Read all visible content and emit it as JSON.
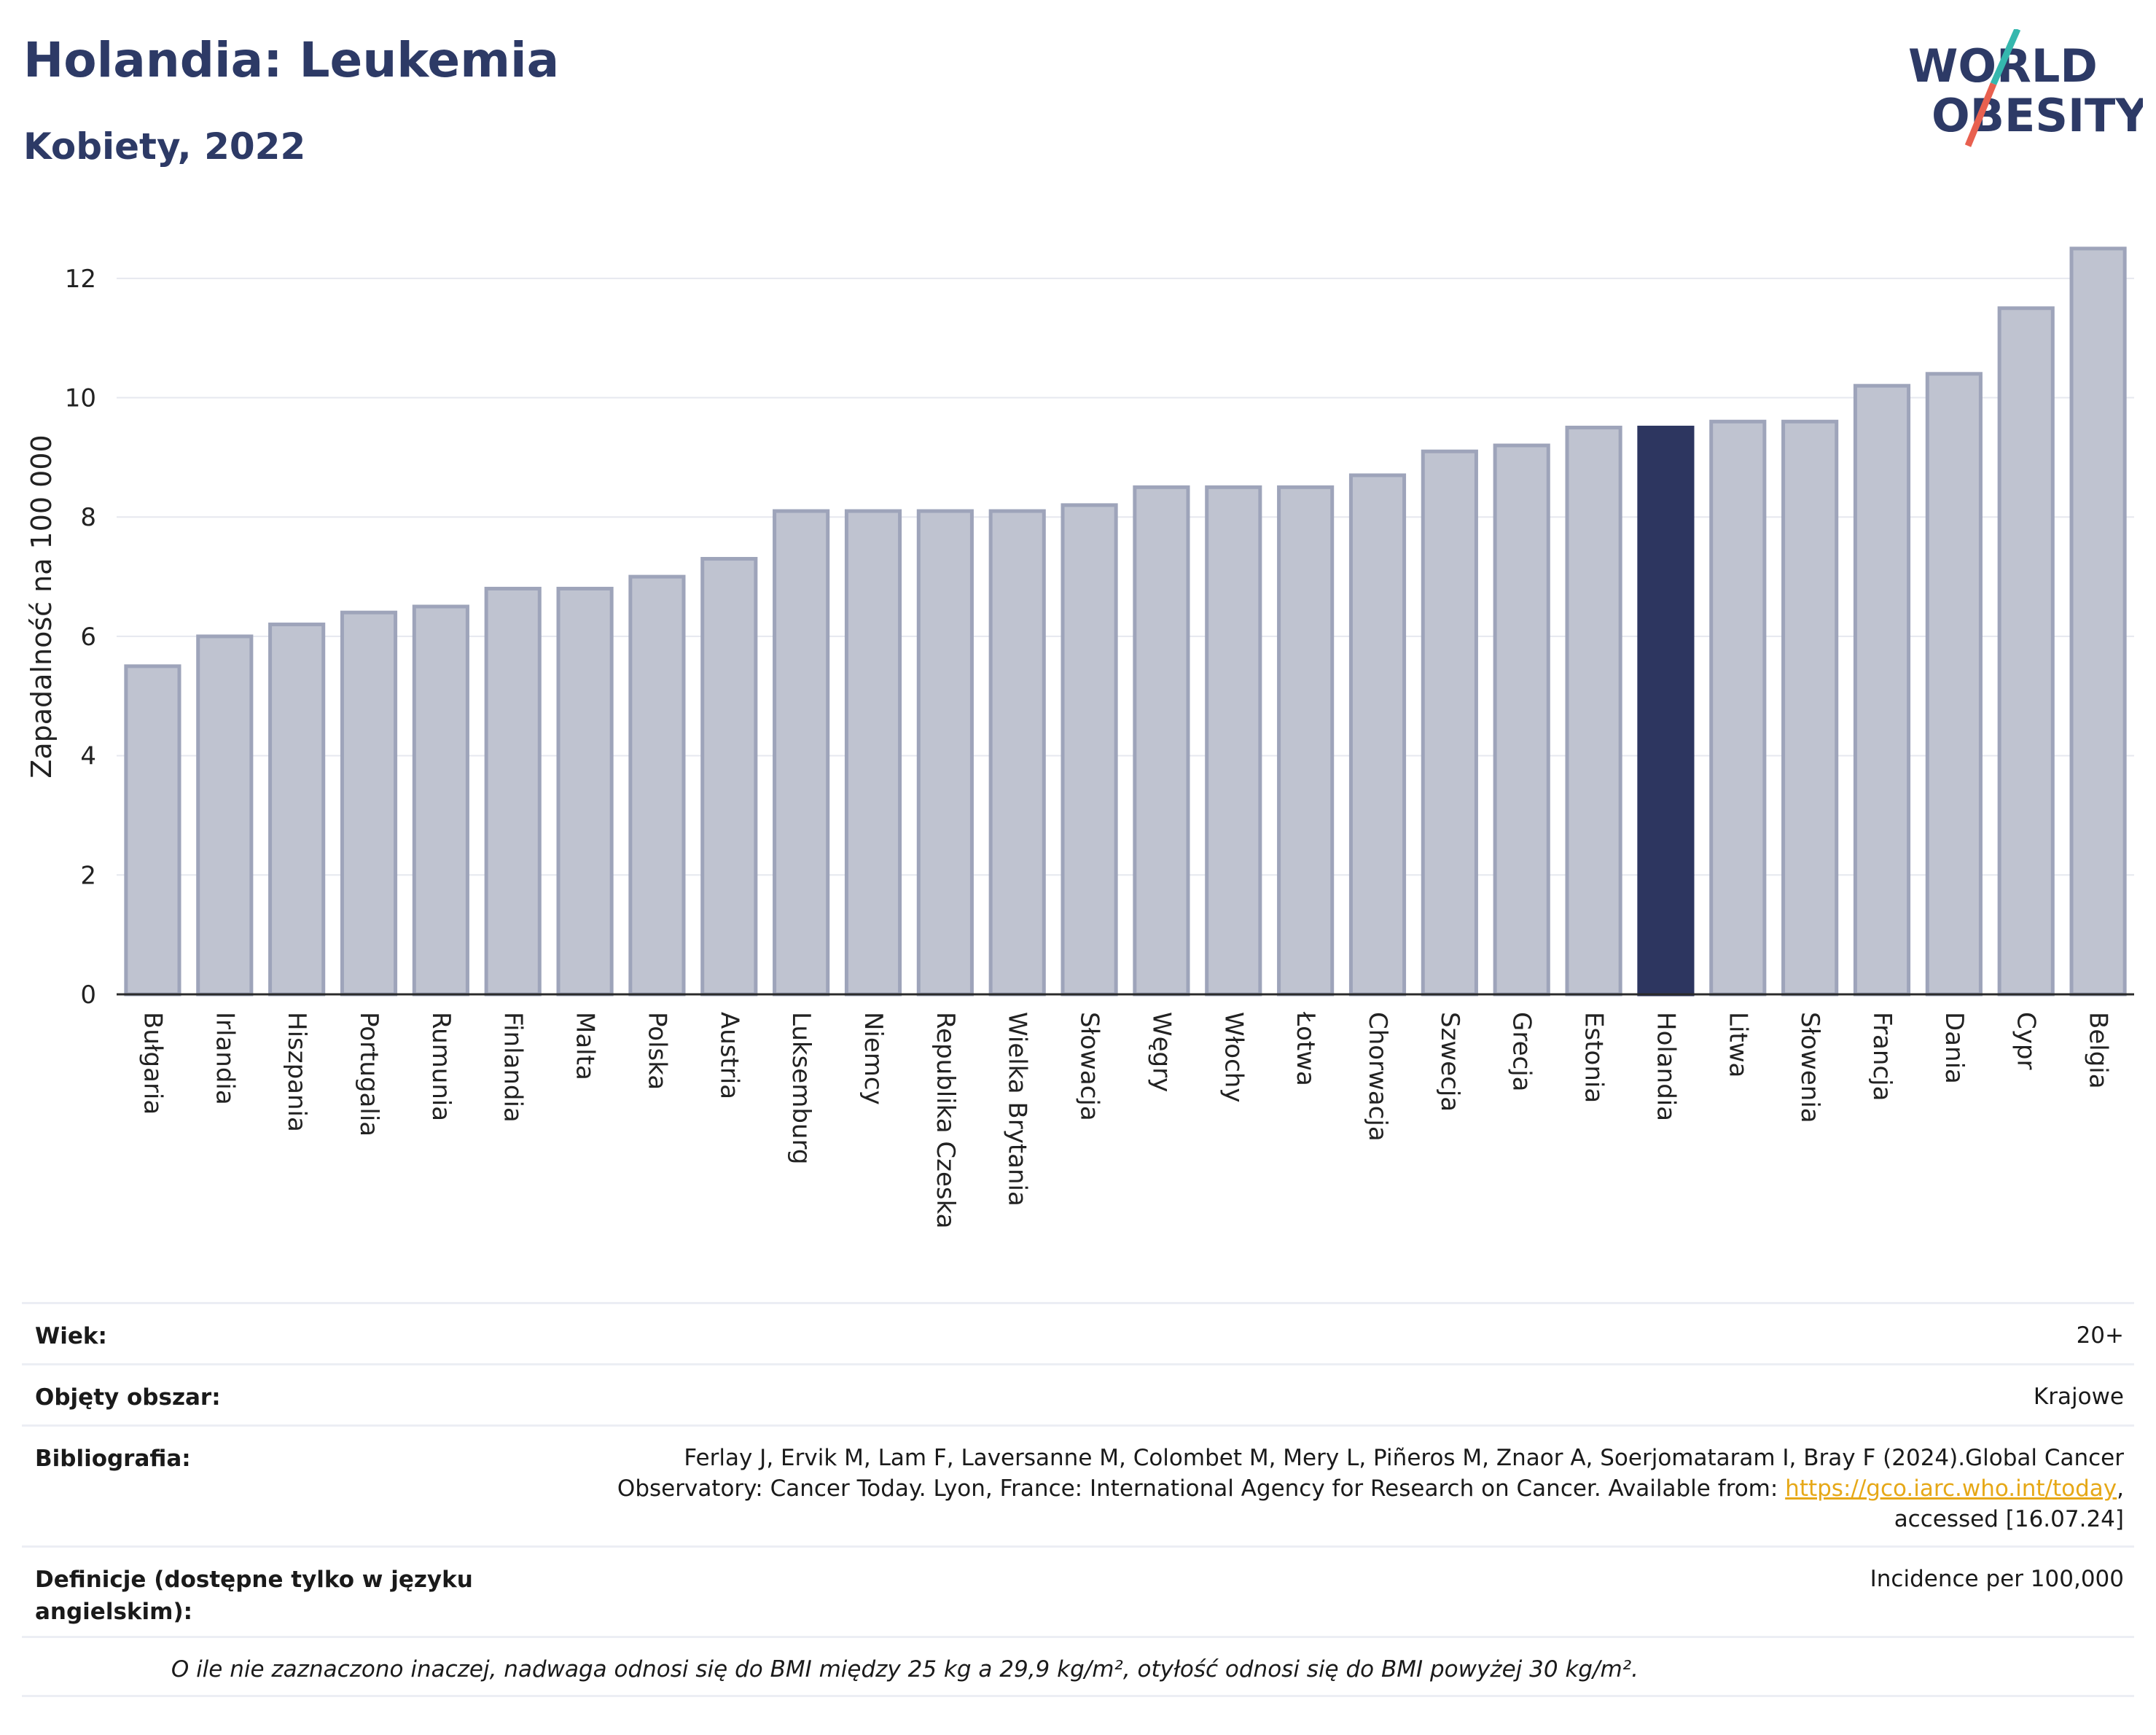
{
  "header": {
    "title": "Holandia: Leukemia",
    "subtitle": "Kobiety, 2022"
  },
  "logo": {
    "line1": "WORLD",
    "line2": "OBESITY"
  },
  "colors": {
    "bar": "#bfc3d0",
    "bar_stroke": "#9ea4ba",
    "highlight": "#2d3660",
    "grid": "#e6e8ef",
    "axis": "#2b2b2b",
    "logo_teal": "#35b7ae",
    "logo_red": "#e8604f"
  },
  "chart_data": {
    "type": "bar",
    "ylabel": "Zapadalność na 100 000",
    "ylim": [
      0,
      13
    ],
    "yticks": [
      0,
      2,
      4,
      6,
      8,
      10,
      12
    ],
    "grid": true,
    "highlight": "Holandia",
    "categories": [
      "Bułgaria",
      "Irlandia",
      "Hiszpania",
      "Portugalia",
      "Rumunia",
      "Finlandia",
      "Malta",
      "Polska",
      "Austria",
      "Luksemburg",
      "Niemcy",
      "Republika Czeska",
      "Wielka Brytania",
      "Słowacja",
      "Węgry",
      "Włochy",
      "Łotwa",
      "Chorwacja",
      "Szwecja",
      "Grecja",
      "Estonia",
      "Holandia",
      "Litwa",
      "Słowenia",
      "Francja",
      "Dania",
      "Cypr",
      "Belgia"
    ],
    "values": [
      5.5,
      6.0,
      6.2,
      6.4,
      6.5,
      6.8,
      6.8,
      7.0,
      7.3,
      8.1,
      8.1,
      8.1,
      8.1,
      8.2,
      8.5,
      8.5,
      8.5,
      8.7,
      9.1,
      9.2,
      9.5,
      9.5,
      9.6,
      9.6,
      10.2,
      10.4,
      11.5,
      12.5
    ]
  },
  "meta": {
    "age_label": "Wiek:",
    "age_value": "20+",
    "area_label": "Objęty obszar:",
    "area_value": "Krajowe",
    "biblio_label": "Bibliografia:",
    "biblio_line1": "Ferlay J, Ervik M, Lam F, Laversanne M, Colombet M, Mery L, Piñeros M, Znaor A, Soerjomataram I, Bray F (2024).Global Cancer",
    "biblio_line2_pre": "Observatory: Cancer Today. Lyon, France: International Agency for Research on Cancer. Available from: ",
    "biblio_link": "https://gco.iarc.who.int/today",
    "biblio_line2_post": ",",
    "biblio_line3": "accessed [16.07.24]",
    "def_label": "Definicje (dostępne tylko w języku angielskim):",
    "def_value": "Incidence per 100,000",
    "note": "O ile nie zaznaczono inaczej, nadwaga odnosi się do BMI między 25 kg a 29,9 kg/m², otyłość odnosi się do BMI powyżej 30 kg/m²."
  }
}
